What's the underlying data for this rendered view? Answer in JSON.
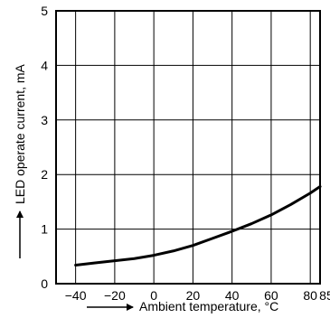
{
  "chart_data": {
    "type": "line",
    "xlabel": "Ambient temperature, °C",
    "ylabel": "LED operate current, mA",
    "xlim": [
      -50,
      85
    ],
    "ylim": [
      0,
      5
    ],
    "x_ticks": [
      -40,
      -20,
      0,
      20,
      40,
      60,
      80,
      85
    ],
    "x_tick_labels": [
      "−40",
      "−20",
      "0",
      "20",
      "40",
      "60",
      "80",
      "85"
    ],
    "y_ticks": [
      0,
      1,
      2,
      3,
      4,
      5
    ],
    "y_tick_labels": [
      "0",
      "1",
      "2",
      "3",
      "4",
      "5"
    ],
    "grid": true,
    "colors": {
      "line": "#000000",
      "grid": "#000000",
      "background": "#ffffff"
    },
    "series": [
      {
        "x": [
          -40,
          -30,
          -20,
          -10,
          0,
          10,
          20,
          30,
          40,
          50,
          60,
          70,
          80,
          85
        ],
        "y": [
          0.34,
          0.38,
          0.42,
          0.46,
          0.52,
          0.6,
          0.7,
          0.83,
          0.96,
          1.1,
          1.26,
          1.45,
          1.66,
          1.78
        ]
      }
    ]
  }
}
